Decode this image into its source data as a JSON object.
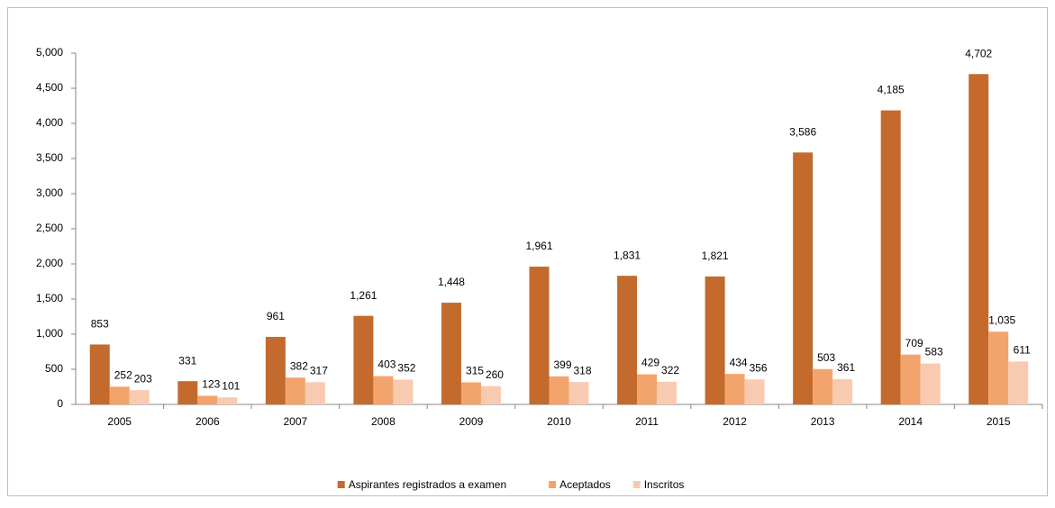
{
  "chart_data": {
    "type": "bar",
    "categories": [
      "2005",
      "2006",
      "2007",
      "2008",
      "2009",
      "2010",
      "2011",
      "2012",
      "2013",
      "2014",
      "2015"
    ],
    "series": [
      {
        "name": "Aspirantes registrados a examen",
        "color": "#c46a2c",
        "values": [
          853,
          331,
          961,
          1261,
          1448,
          1961,
          1831,
          1821,
          3586,
          4185,
          4702
        ],
        "value_labels": [
          "853",
          "331",
          "961",
          "1,261",
          "1,448",
          "1,961",
          "1,831",
          "1,821",
          "3,586",
          "4,185",
          "4,702"
        ]
      },
      {
        "name": "Aceptados",
        "color": "#f3a46c",
        "values": [
          252,
          123,
          382,
          403,
          315,
          399,
          429,
          434,
          503,
          709,
          1035
        ],
        "value_labels": [
          "252",
          "123",
          "382",
          "403",
          "315",
          "399",
          "429",
          "434",
          "503",
          "709",
          "1,035"
        ]
      },
      {
        "name": "Inscritos",
        "color": "#f8cbb0",
        "values": [
          203,
          101,
          317,
          352,
          260,
          318,
          322,
          356,
          361,
          583,
          611
        ],
        "value_labels": [
          "203",
          "101",
          "317",
          "352",
          "260",
          "318",
          "322",
          "356",
          "361",
          "583",
          "611"
        ]
      }
    ],
    "ylim": [
      0,
      5000
    ],
    "yticks": [
      0,
      500,
      {
        "value": 1000,
        "label": "1,000"
      },
      {
        "value": 1500,
        "label": "1,500"
      },
      {
        "value": 2000,
        "label": "2,000"
      },
      {
        "value": 2500,
        "label": "2,500"
      },
      {
        "value": 3000,
        "label": "3,000"
      },
      {
        "value": 3500,
        "label": "3,500"
      },
      {
        "value": 4000,
        "label": "4,000"
      },
      {
        "value": 4500,
        "label": "4,500"
      },
      {
        "value": 5000,
        "label": "5,000"
      }
    ],
    "grid": false,
    "legend": "bottom"
  }
}
